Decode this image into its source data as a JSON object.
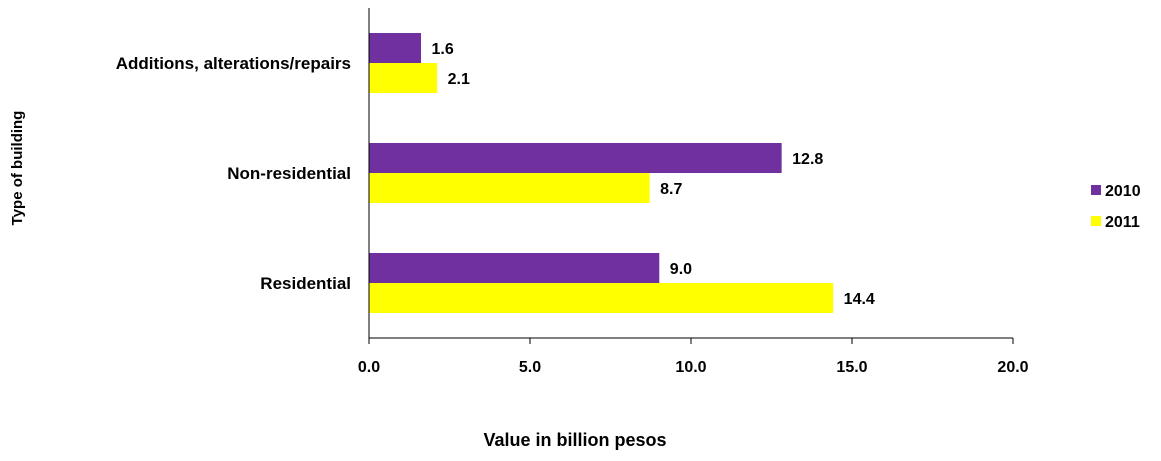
{
  "chart_data": {
    "type": "bar",
    "orientation": "horizontal",
    "categories": [
      "Additions, alterations/repairs",
      "Non-residential",
      "Residential"
    ],
    "series": [
      {
        "name": "2010",
        "values": [
          1.6,
          12.8,
          9.0
        ],
        "value_labels": [
          "1.6",
          "12.8",
          "9.0"
        ],
        "color": "#7030a0"
      },
      {
        "name": "2011",
        "values": [
          2.1,
          8.7,
          14.4
        ],
        "value_labels": [
          "2.1",
          "8.7",
          "14.4"
        ],
        "color": "#ffff00"
      }
    ],
    "xlabel": "Value in billion pesos",
    "ylabel": "Type of building",
    "xlim": [
      0,
      20
    ],
    "xticks": [
      0,
      5,
      10,
      15,
      20
    ],
    "xtick_labels": [
      "0.0",
      "5.0",
      "10.0",
      "15.0",
      "20.0"
    ],
    "grid": false,
    "legend_position": "right"
  }
}
